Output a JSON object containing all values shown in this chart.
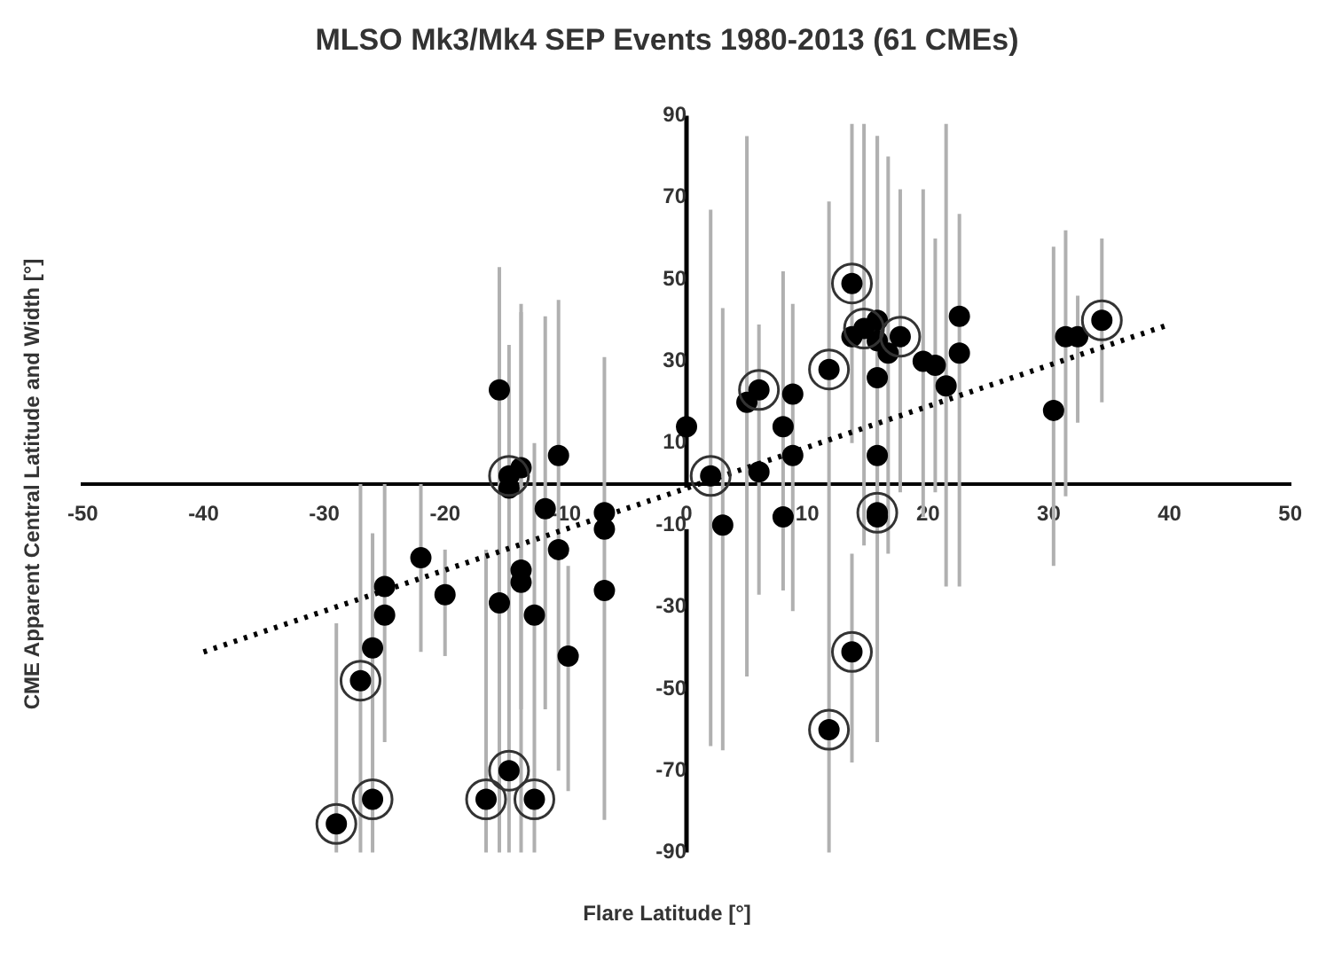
{
  "chart_data": {
    "type": "scatter",
    "title": "MLSO Mk3/Mk4 SEP Events 1980-2013 (61 CMEs)",
    "xlabel": "Flare Latitude  [°]",
    "ylabel": "CME Apparent Central Latitude and Width [°]",
    "xlim": [
      -50,
      50
    ],
    "xticks": [
      -50,
      -40,
      -30,
      -20,
      -10,
      0,
      10,
      20,
      30,
      40,
      50
    ],
    "ylim": [
      -90,
      90
    ],
    "yticks": [
      -90,
      -70,
      -50,
      -30,
      -10,
      10,
      30,
      50,
      70,
      90
    ],
    "marker": "circle",
    "series": [
      {
        "color": "#000000",
        "x": [
          -26,
          -25,
          -25,
          -22,
          -20,
          -15.5,
          -15.5,
          -14.7,
          -13.7,
          -13.7,
          -13.7,
          -11.7,
          -12.6,
          -10.6,
          -10.6,
          -9.8,
          -6.8,
          -6.8,
          -6.8,
          0,
          3,
          5,
          6,
          8,
          8,
          8.8,
          8.8,
          13.7,
          15.8,
          15.8,
          15.8,
          15.8,
          15.8,
          16.7,
          19.6,
          20.6,
          21.5,
          22.6,
          22.6,
          30.4,
          31.4,
          32.4
        ],
        "values": [
          -40,
          -25,
          -32,
          -18,
          -27,
          23,
          -29,
          -1,
          4,
          -21,
          -24,
          -6,
          -32,
          7,
          -16,
          -42,
          -7,
          -11,
          -26,
          14,
          -10,
          20,
          3,
          -8,
          14,
          22,
          7,
          36,
          40,
          35,
          26,
          7,
          -8,
          32,
          30,
          29,
          24,
          41,
          32,
          18,
          36,
          36
        ],
        "errors": [
          null,
          [
            -63,
            0
          ],
          null,
          [
            -41,
            0
          ],
          [
            -42,
            -16
          ],
          [
            -90,
            53
          ],
          null,
          null,
          [
            -90,
            44
          ],
          [
            -55,
            42
          ],
          null,
          [
            -55,
            41
          ],
          null,
          [
            -70,
            45
          ],
          null,
          [
            -75,
            -20
          ],
          [
            -82,
            31
          ],
          null,
          null,
          null,
          [
            -65,
            43
          ],
          [
            -47,
            85
          ],
          [
            -27,
            39
          ],
          [
            -26,
            52
          ],
          null,
          [
            -31,
            44
          ],
          null,
          null,
          [
            -10,
            85
          ],
          null,
          [
            -63,
            85
          ],
          null,
          null,
          [
            -17,
            80
          ],
          [
            -8,
            72
          ],
          [
            -2,
            60
          ],
          [
            -25,
            88
          ],
          [
            -25,
            66
          ],
          null,
          [
            -20,
            58
          ],
          [
            -3,
            62
          ],
          [
            15,
            46
          ]
        ]
      },
      {
        "color": "#000000",
        "x": [
          -29,
          -27,
          -26,
          -16.6,
          -14.7,
          -14.7,
          -12.6,
          2,
          6,
          11.8,
          11.8,
          13.7,
          13.7,
          14.7,
          15.8,
          17.7,
          34.4
        ],
        "values": [
          -83,
          -48,
          -77,
          -77,
          2,
          -70,
          -77,
          2,
          23,
          28,
          -60,
          49,
          -41,
          38,
          -7,
          36,
          40
        ],
        "errors": [
          [
            -90,
            -34
          ],
          [
            -90,
            0
          ],
          [
            -90,
            -12
          ],
          [
            -90,
            -16
          ],
          [
            -90,
            34
          ],
          null,
          [
            -90,
            10
          ],
          [
            -64,
            67
          ],
          null,
          [
            -90,
            69
          ],
          null,
          [
            10,
            88
          ],
          [
            -68,
            -17
          ],
          [
            -15,
            88
          ],
          null,
          [
            -2,
            72
          ],
          [
            20,
            60
          ]
        ]
      },
      {
        "type": "line",
        "color": "#000000",
        "x": [
          -40,
          40
        ],
        "values": [
          -41,
          39
        ],
        "line_style": "dotted",
        "marker": "none"
      }
    ]
  }
}
